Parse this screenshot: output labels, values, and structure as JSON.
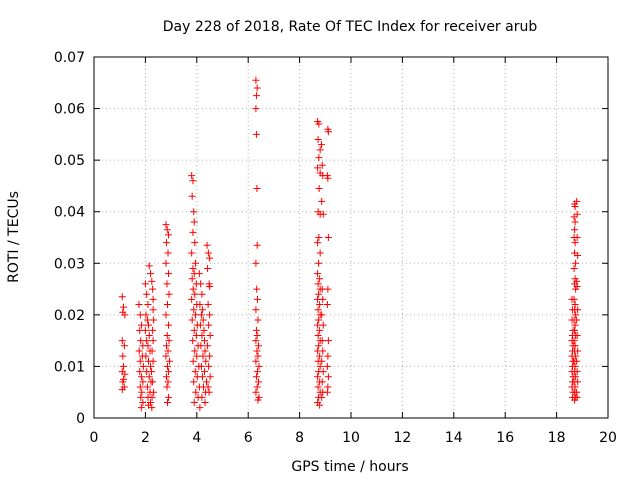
{
  "chart_data": {
    "type": "scatter",
    "title": "Day 228 of 2018, Rate Of TEC Index for receiver arub",
    "xlabel": "GPS time / hours",
    "ylabel": "ROTI / TECUs",
    "xlim": [
      0,
      20
    ],
    "ylim": [
      0,
      0.07
    ],
    "xticks": [
      0,
      2,
      4,
      6,
      8,
      10,
      12,
      14,
      16,
      18,
      20
    ],
    "yticks": [
      0,
      0.01,
      0.02,
      0.03,
      0.04,
      0.05,
      0.06,
      0.07
    ],
    "ytick_labels": [
      "0",
      "0.01",
      "0.02",
      "0.03",
      "0.04",
      "0.05",
      "0.06",
      "0.07"
    ],
    "grid": true,
    "marker": "+",
    "color": "#ff0000",
    "points": [
      [
        1.1,
        0.0235
      ],
      [
        1.15,
        0.0215
      ],
      [
        1.12,
        0.0205
      ],
      [
        1.2,
        0.02
      ],
      [
        1.1,
        0.015
      ],
      [
        1.18,
        0.014
      ],
      [
        1.12,
        0.012
      ],
      [
        1.15,
        0.01
      ],
      [
        1.1,
        0.009
      ],
      [
        1.2,
        0.0085
      ],
      [
        1.15,
        0.0075
      ],
      [
        1.12,
        0.007
      ],
      [
        1.18,
        0.006
      ],
      [
        1.1,
        0.0055
      ],
      [
        1.75,
        0.022
      ],
      [
        1.8,
        0.02
      ],
      [
        1.85,
        0.018
      ],
      [
        1.78,
        0.017
      ],
      [
        1.82,
        0.015
      ],
      [
        1.9,
        0.014
      ],
      [
        1.76,
        0.013
      ],
      [
        1.88,
        0.012
      ],
      [
        1.8,
        0.011
      ],
      [
        1.92,
        0.01
      ],
      [
        1.78,
        0.009
      ],
      [
        1.85,
        0.008
      ],
      [
        1.9,
        0.007
      ],
      [
        1.8,
        0.006
      ],
      [
        1.86,
        0.005
      ],
      [
        1.82,
        0.004
      ],
      [
        1.9,
        0.003
      ],
      [
        1.84,
        0.002
      ],
      [
        2.0,
        0.026
      ],
      [
        2.05,
        0.024
      ],
      [
        2.1,
        0.022
      ],
      [
        2.02,
        0.02
      ],
      [
        2.08,
        0.019
      ],
      [
        2.12,
        0.018
      ],
      [
        2.0,
        0.017
      ],
      [
        2.15,
        0.016
      ],
      [
        2.05,
        0.015
      ],
      [
        2.1,
        0.014
      ],
      [
        2.18,
        0.013
      ],
      [
        2.02,
        0.012
      ],
      [
        2.12,
        0.011
      ],
      [
        2.2,
        0.01
      ],
      [
        2.05,
        0.009
      ],
      [
        2.15,
        0.008
      ],
      [
        2.22,
        0.007
      ],
      [
        2.08,
        0.006
      ],
      [
        2.18,
        0.005
      ],
      [
        2.1,
        0.004
      ],
      [
        2.2,
        0.003
      ],
      [
        2.12,
        0.0025
      ],
      [
        2.25,
        0.002
      ],
      [
        2.15,
        0.0295
      ],
      [
        2.2,
        0.028
      ],
      [
        2.25,
        0.0265
      ],
      [
        2.28,
        0.025
      ],
      [
        2.3,
        0.023
      ],
      [
        2.3,
        0.021
      ],
      [
        2.32,
        0.019
      ],
      [
        2.28,
        0.017
      ],
      [
        2.3,
        0.015
      ],
      [
        2.26,
        0.013
      ],
      [
        2.3,
        0.011
      ],
      [
        2.24,
        0.009
      ],
      [
        2.28,
        0.007
      ],
      [
        2.32,
        0.005
      ],
      [
        2.26,
        0.004
      ],
      [
        2.8,
        0.0375
      ],
      [
        2.85,
        0.0365
      ],
      [
        2.9,
        0.0355
      ],
      [
        2.82,
        0.034
      ],
      [
        2.88,
        0.032
      ],
      [
        2.8,
        0.03
      ],
      [
        2.9,
        0.028
      ],
      [
        2.84,
        0.026
      ],
      [
        2.92,
        0.024
      ],
      [
        2.86,
        0.022
      ],
      [
        2.8,
        0.02
      ],
      [
        2.9,
        0.018
      ],
      [
        2.85,
        0.016
      ],
      [
        2.92,
        0.015
      ],
      [
        2.82,
        0.014
      ],
      [
        2.88,
        0.013
      ],
      [
        2.8,
        0.012
      ],
      [
        2.94,
        0.011
      ],
      [
        2.86,
        0.01
      ],
      [
        2.9,
        0.009
      ],
      [
        2.82,
        0.008
      ],
      [
        2.88,
        0.007
      ],
      [
        2.84,
        0.006
      ],
      [
        2.9,
        0.004
      ],
      [
        2.86,
        0.003
      ],
      [
        3.8,
        0.047
      ],
      [
        3.85,
        0.046
      ],
      [
        3.82,
        0.043
      ],
      [
        3.88,
        0.04
      ],
      [
        3.9,
        0.038
      ],
      [
        3.85,
        0.036
      ],
      [
        3.92,
        0.034
      ],
      [
        3.8,
        0.032
      ],
      [
        3.95,
        0.03
      ],
      [
        3.85,
        0.029
      ],
      [
        3.9,
        0.028
      ],
      [
        3.82,
        0.027
      ],
      [
        3.98,
        0.026
      ],
      [
        3.86,
        0.025
      ],
      [
        3.92,
        0.024
      ],
      [
        3.8,
        0.023
      ],
      [
        4.0,
        0.022
      ],
      [
        3.88,
        0.021
      ],
      [
        3.95,
        0.02
      ],
      [
        3.82,
        0.019
      ],
      [
        4.02,
        0.018
      ],
      [
        3.9,
        0.017
      ],
      [
        3.98,
        0.016
      ],
      [
        3.84,
        0.015
      ],
      [
        4.05,
        0.014
      ],
      [
        3.92,
        0.013
      ],
      [
        4.0,
        0.012
      ],
      [
        3.86,
        0.011
      ],
      [
        4.08,
        0.01
      ],
      [
        3.94,
        0.009
      ],
      [
        4.02,
        0.008
      ],
      [
        3.88,
        0.007
      ],
      [
        4.1,
        0.006
      ],
      [
        3.96,
        0.005
      ],
      [
        4.05,
        0.004
      ],
      [
        3.9,
        0.003
      ],
      [
        4.12,
        0.002
      ],
      [
        4.1,
        0.028
      ],
      [
        4.15,
        0.026
      ],
      [
        4.2,
        0.024
      ],
      [
        4.12,
        0.022
      ],
      [
        4.22,
        0.021
      ],
      [
        4.18,
        0.02
      ],
      [
        4.25,
        0.019
      ],
      [
        4.14,
        0.018
      ],
      [
        4.28,
        0.017
      ],
      [
        4.2,
        0.016
      ],
      [
        4.3,
        0.015
      ],
      [
        4.16,
        0.014
      ],
      [
        4.32,
        0.013
      ],
      [
        4.24,
        0.012
      ],
      [
        4.35,
        0.011
      ],
      [
        4.18,
        0.01
      ],
      [
        4.3,
        0.009
      ],
      [
        4.22,
        0.008
      ],
      [
        4.38,
        0.007
      ],
      [
        4.26,
        0.006
      ],
      [
        4.34,
        0.005
      ],
      [
        4.2,
        0.004
      ],
      [
        4.32,
        0.003
      ],
      [
        4.4,
        0.0335
      ],
      [
        4.45,
        0.032
      ],
      [
        4.5,
        0.031
      ],
      [
        4.42,
        0.029
      ],
      [
        4.48,
        0.026
      ],
      [
        4.5,
        0.0255
      ],
      [
        4.44,
        0.022
      ],
      [
        4.5,
        0.02
      ],
      [
        4.46,
        0.018
      ],
      [
        4.52,
        0.016
      ],
      [
        4.42,
        0.014
      ],
      [
        4.5,
        0.012
      ],
      [
        4.46,
        0.01
      ],
      [
        4.52,
        0.008
      ],
      [
        4.44,
        0.006
      ],
      [
        4.48,
        0.005
      ],
      [
        6.3,
        0.0655
      ],
      [
        6.35,
        0.064
      ],
      [
        6.32,
        0.0625
      ],
      [
        6.3,
        0.06
      ],
      [
        6.32,
        0.055
      ],
      [
        6.34,
        0.0445
      ],
      [
        6.35,
        0.0335
      ],
      [
        6.3,
        0.03
      ],
      [
        6.33,
        0.025
      ],
      [
        6.36,
        0.023
      ],
      [
        6.3,
        0.021
      ],
      [
        6.38,
        0.019
      ],
      [
        6.32,
        0.017
      ],
      [
        6.35,
        0.016
      ],
      [
        6.3,
        0.015
      ],
      [
        6.4,
        0.014
      ],
      [
        6.34,
        0.013
      ],
      [
        6.38,
        0.012
      ],
      [
        6.3,
        0.011
      ],
      [
        6.42,
        0.01
      ],
      [
        6.36,
        0.009
      ],
      [
        6.32,
        0.008
      ],
      [
        6.4,
        0.007
      ],
      [
        6.35,
        0.006
      ],
      [
        6.3,
        0.005
      ],
      [
        6.42,
        0.004
      ],
      [
        6.38,
        0.0035
      ],
      [
        8.7,
        0.0575
      ],
      [
        8.75,
        0.057
      ],
      [
        8.72,
        0.054
      ],
      [
        8.8,
        0.052
      ],
      [
        8.75,
        0.0505
      ],
      [
        8.7,
        0.0485
      ],
      [
        8.8,
        0.0475
      ],
      [
        8.76,
        0.0445
      ],
      [
        8.72,
        0.04
      ],
      [
        8.8,
        0.0395
      ],
      [
        8.75,
        0.035
      ],
      [
        8.7,
        0.034
      ],
      [
        8.8,
        0.032
      ],
      [
        8.74,
        0.03
      ],
      [
        8.7,
        0.028
      ],
      [
        8.78,
        0.027
      ],
      [
        8.72,
        0.026
      ],
      [
        8.8,
        0.025
      ],
      [
        8.74,
        0.024
      ],
      [
        8.7,
        0.023
      ],
      [
        8.78,
        0.022
      ],
      [
        8.72,
        0.021
      ],
      [
        8.8,
        0.02
      ],
      [
        8.74,
        0.019
      ],
      [
        8.7,
        0.018
      ],
      [
        8.78,
        0.017
      ],
      [
        8.72,
        0.016
      ],
      [
        8.8,
        0.015
      ],
      [
        8.74,
        0.014
      ],
      [
        8.7,
        0.013
      ],
      [
        8.78,
        0.012
      ],
      [
        8.72,
        0.011
      ],
      [
        8.8,
        0.01
      ],
      [
        8.74,
        0.009
      ],
      [
        8.7,
        0.008
      ],
      [
        8.78,
        0.007
      ],
      [
        8.72,
        0.006
      ],
      [
        8.8,
        0.005
      ],
      [
        8.74,
        0.004
      ],
      [
        8.7,
        0.003
      ],
      [
        8.78,
        0.0025
      ],
      [
        8.85,
        0.053
      ],
      [
        8.88,
        0.049
      ],
      [
        8.9,
        0.047
      ],
      [
        8.86,
        0.042
      ],
      [
        8.92,
        0.0395
      ],
      [
        8.88,
        0.025
      ],
      [
        8.9,
        0.023
      ],
      [
        8.86,
        0.02
      ],
      [
        8.92,
        0.018
      ],
      [
        8.88,
        0.015
      ],
      [
        8.9,
        0.013
      ],
      [
        8.86,
        0.011
      ],
      [
        8.92,
        0.009
      ],
      [
        8.88,
        0.007
      ],
      [
        8.9,
        0.005
      ],
      [
        8.86,
        0.004
      ],
      [
        9.1,
        0.056
      ],
      [
        9.12,
        0.0555
      ],
      [
        9.08,
        0.047
      ],
      [
        9.1,
        0.0465
      ],
      [
        9.12,
        0.035
      ],
      [
        9.1,
        0.025
      ],
      [
        9.08,
        0.022
      ],
      [
        9.12,
        0.015
      ],
      [
        9.1,
        0.012
      ],
      [
        9.08,
        0.01
      ],
      [
        9.12,
        0.008
      ],
      [
        9.1,
        0.006
      ],
      [
        9.08,
        0.005
      ],
      [
        18.6,
        0.023
      ],
      [
        18.62,
        0.021
      ],
      [
        18.6,
        0.019
      ],
      [
        18.64,
        0.017
      ],
      [
        18.62,
        0.016
      ],
      [
        18.6,
        0.015
      ],
      [
        18.64,
        0.014
      ],
      [
        18.62,
        0.013
      ],
      [
        18.6,
        0.012
      ],
      [
        18.64,
        0.011
      ],
      [
        18.62,
        0.01
      ],
      [
        18.6,
        0.009
      ],
      [
        18.64,
        0.008
      ],
      [
        18.62,
        0.007
      ],
      [
        18.6,
        0.006
      ],
      [
        18.64,
        0.005
      ],
      [
        18.62,
        0.004
      ],
      [
        18.7,
        0.0415
      ],
      [
        18.72,
        0.041
      ],
      [
        18.68,
        0.039
      ],
      [
        18.72,
        0.038
      ],
      [
        18.7,
        0.0365
      ],
      [
        18.68,
        0.035
      ],
      [
        18.72,
        0.034
      ],
      [
        18.7,
        0.032
      ],
      [
        18.74,
        0.03
      ],
      [
        18.68,
        0.029
      ],
      [
        18.72,
        0.027
      ],
      [
        18.7,
        0.026
      ],
      [
        18.74,
        0.025
      ],
      [
        18.68,
        0.023
      ],
      [
        18.72,
        0.022
      ],
      [
        18.7,
        0.021
      ],
      [
        18.74,
        0.02
      ],
      [
        18.68,
        0.019
      ],
      [
        18.72,
        0.018
      ],
      [
        18.7,
        0.017
      ],
      [
        18.74,
        0.016
      ],
      [
        18.68,
        0.015
      ],
      [
        18.72,
        0.014
      ],
      [
        18.7,
        0.013
      ],
      [
        18.74,
        0.012
      ],
      [
        18.68,
        0.011
      ],
      [
        18.72,
        0.01
      ],
      [
        18.7,
        0.009
      ],
      [
        18.74,
        0.008
      ],
      [
        18.68,
        0.007
      ],
      [
        18.72,
        0.006
      ],
      [
        18.7,
        0.005
      ],
      [
        18.74,
        0.004
      ],
      [
        18.7,
        0.0035
      ],
      [
        18.78,
        0.042
      ],
      [
        18.8,
        0.0395
      ],
      [
        18.8,
        0.035
      ],
      [
        18.82,
        0.0315
      ],
      [
        18.78,
        0.0265
      ],
      [
        18.8,
        0.0255
      ],
      [
        18.82,
        0.021
      ],
      [
        18.78,
        0.019
      ],
      [
        18.8,
        0.016
      ],
      [
        18.82,
        0.013
      ],
      [
        18.78,
        0.011
      ],
      [
        18.8,
        0.009
      ],
      [
        18.82,
        0.007
      ],
      [
        18.78,
        0.005
      ],
      [
        18.8,
        0.004
      ]
    ]
  }
}
